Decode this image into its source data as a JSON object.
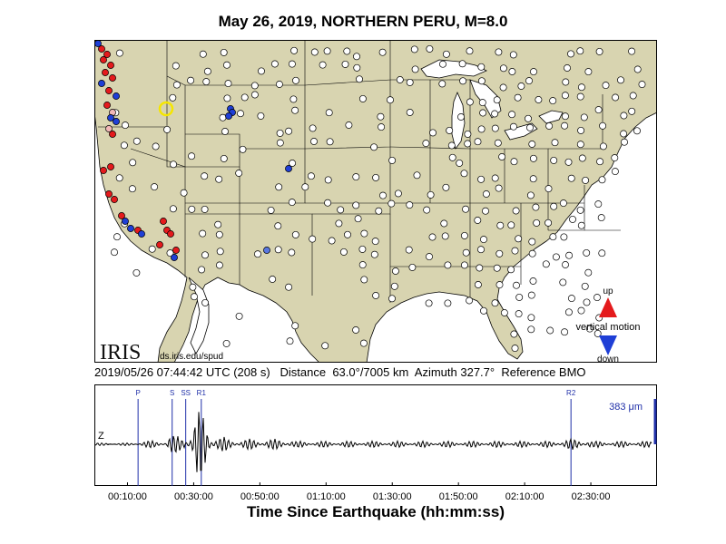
{
  "title": "May 26, 2019, NORTHERN PERU, M=8.0",
  "colors": {
    "land": "#d8d4b0",
    "water": "#ffffff",
    "up": "#e41a1c",
    "down": "#1f3fd6",
    "neutral": "#ffffff",
    "reference": "#f5e600",
    "trace": "#000000",
    "phase": "#1f2fa8"
  },
  "map": {
    "logo_text": "IRIS",
    "url_text": "ds.iris.edu/spud",
    "legend": {
      "up_label": "up",
      "motion_label": "vertical motion",
      "down_label": "down"
    }
  },
  "info_line": "2019/05/26 07:44:42 UTC (208 s)   Distance  63.0°/7005 km  Azimuth 327.7°  Reference BMO",
  "trace": {
    "channel": "Z",
    "scale_label": "383 μm",
    "phases": [
      {
        "label": "P",
        "time_min": 13.2
      },
      {
        "label": "S",
        "time_min": 23.5
      },
      {
        "label": "SS",
        "time_min": 27.6
      },
      {
        "label": "R1",
        "time_min": 32.3
      },
      {
        "label": "R2",
        "time_min": 144.0
      }
    ],
    "time_range_min": [
      0,
      170
    ],
    "tick_labels": [
      "00:10:00",
      "00:30:00",
      "00:50:00",
      "01:10:00",
      "01:30:00",
      "01:50:00",
      "02:10:00",
      "02:30:00"
    ]
  },
  "xlabel": "Time Since Earthquake (hh:mm:ss)"
}
